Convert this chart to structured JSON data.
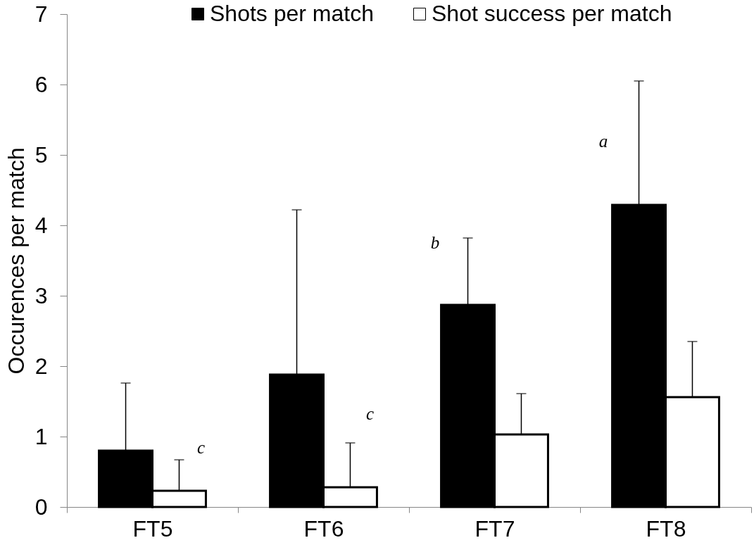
{
  "chart_data": {
    "type": "bar",
    "ylabel": "Occurences per match",
    "categories": [
      "FT5",
      "FT6",
      "FT7",
      "FT8"
    ],
    "series": [
      {
        "name": "Shots per match",
        "color": "#000000",
        "values": [
          0.8,
          1.88,
          2.87,
          4.29
        ],
        "errors": [
          [
            0.8,
            1.76
          ],
          [
            1.88,
            4.22
          ],
          [
            2.87,
            3.82
          ],
          [
            4.29,
            6.05
          ]
        ]
      },
      {
        "name": "Shot success per match",
        "color": "#ffffff",
        "values": [
          0.23,
          0.28,
          1.03,
          1.56
        ],
        "errors": [
          [
            0.23,
            0.67
          ],
          [
            0.28,
            0.91
          ],
          [
            1.03,
            1.61
          ],
          [
            1.56,
            2.35
          ]
        ]
      }
    ],
    "ylim": [
      0,
      7
    ],
    "yticks": [
      0,
      1,
      2,
      3,
      4,
      5,
      6,
      7
    ],
    "grid": false,
    "legend": "top",
    "annotations": [
      "c",
      "c",
      "b",
      "a"
    ]
  }
}
